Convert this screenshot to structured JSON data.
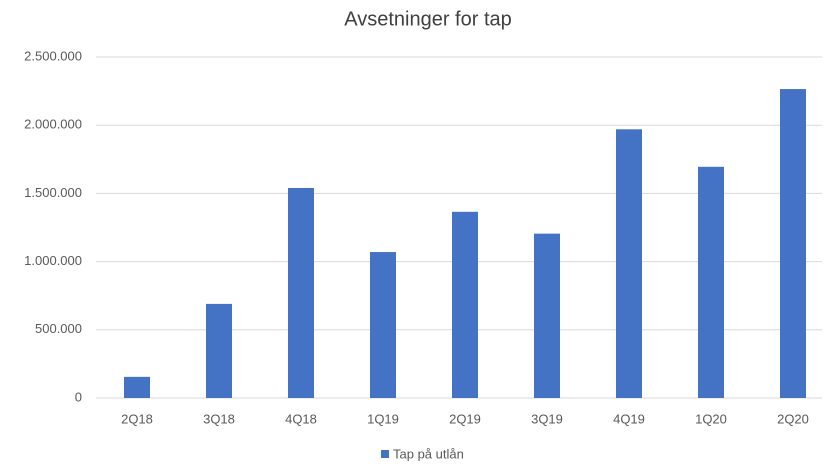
{
  "chart_data": {
    "type": "bar",
    "title": "Avsetninger for tap",
    "categories": [
      "2Q18",
      "3Q18",
      "4Q18",
      "1Q19",
      "2Q19",
      "3Q19",
      "4Q19",
      "1Q20",
      "2Q20"
    ],
    "series": [
      {
        "name": "Tap på utlån",
        "color": "#4472c4",
        "values": [
          155000,
          690000,
          1540000,
          1070000,
          1365000,
          1205000,
          1970000,
          1695000,
          2265000
        ]
      }
    ],
    "ylim": [
      0,
      2500000
    ],
    "yticks": [
      0,
      {
        "value": 500000,
        "label": "500.000"
      },
      {
        "value": 1000000,
        "label": "1.000.000"
      },
      {
        "value": 1500000,
        "label": "1.500.000"
      },
      {
        "value": 2000000,
        "label": "2.000.000"
      },
      {
        "value": 2500000,
        "label": "2.500.000"
      }
    ],
    "grid": true,
    "legend": "bottom"
  }
}
